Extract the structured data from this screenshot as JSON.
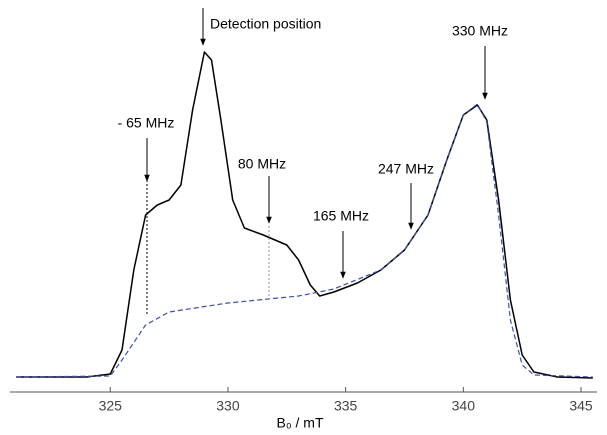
{
  "chart_data": {
    "type": "line",
    "x_label": "B₀ / mT",
    "xlim": [
      320.74,
      345.68
    ],
    "xticks": [
      325,
      330,
      335,
      340,
      345
    ],
    "ylim": [
      0,
      340
    ],
    "series": [
      {
        "color": "#000000",
        "style": "solid",
        "x": [
          321,
          324,
          325,
          325.5,
          326,
          326.5,
          327,
          327.5,
          328,
          328.5,
          329,
          329.3,
          329.7,
          330.2,
          330.7,
          331.5,
          332.5,
          333,
          333.5,
          333.9,
          334.5,
          335.5,
          336.5,
          337.5,
          338.5,
          339.3,
          340,
          340.6,
          341,
          341.5,
          342,
          342.5,
          343,
          344,
          345.5
        ],
        "values": [
          15,
          15,
          18,
          42,
          122,
          177,
          187,
          192,
          207,
          282,
          340,
          332,
          272,
          192,
          164,
          157,
          147,
          132,
          107,
          96,
          100,
          109,
          122,
          142,
          177,
          232,
          277,
          287,
          272,
          192,
          92,
          37,
          20,
          15,
          14
        ]
      },
      {
        "color": "#3a4fb0",
        "style": "dashed",
        "x": [
          321,
          325,
          325.5,
          326.5,
          327.5,
          330,
          333,
          334.5,
          336.5,
          337.5,
          338.5,
          339.3,
          340,
          340.6,
          341,
          341.5,
          342,
          342.5,
          343,
          345.5
        ],
        "values": [
          15,
          16,
          32,
          67,
          80,
          89,
          96,
          103,
          122,
          142,
          177,
          232,
          277,
          288,
          270,
          177,
          72,
          27,
          17,
          15
        ]
      }
    ],
    "annotations": [
      "Detection position",
      "- 65 MHz",
      "80 MHz",
      "165 MHz",
      "247 MHz",
      "330 MHz"
    ]
  }
}
